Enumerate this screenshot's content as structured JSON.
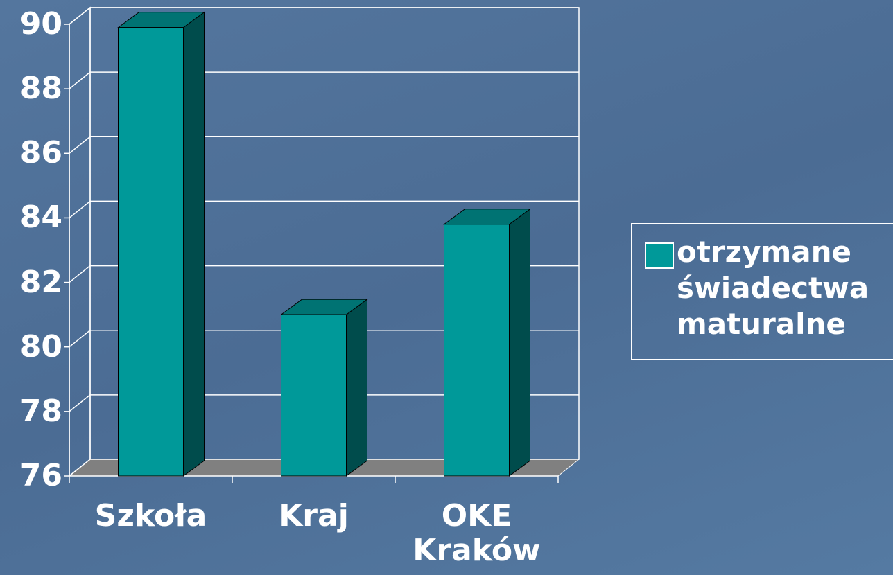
{
  "chart_data": {
    "type": "bar3d",
    "categories": [
      "Szkoła",
      "Kraj",
      "OKE Kraków"
    ],
    "series": [
      {
        "name": "otrzymane świadectwa maturalne",
        "color": "#009999",
        "values": [
          89.9,
          81,
          83.8
        ]
      }
    ],
    "ylim": [
      76,
      90
    ],
    "yticks": [
      76,
      78,
      80,
      82,
      84,
      86,
      88,
      90
    ],
    "grid": true,
    "legend": "right"
  }
}
